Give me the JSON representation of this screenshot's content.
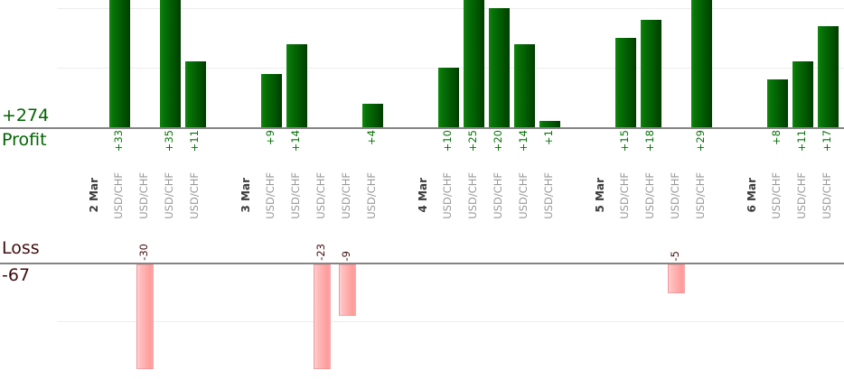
{
  "chart_data": {
    "type": "bar",
    "orientation": "vertical-split-panels",
    "grid": "on",
    "panels": [
      {
        "id": "profit",
        "axis_title": "Profit",
        "total_label": "+274",
        "gridline_values": [
          10,
          20
        ],
        "value_range_visible": [
          0,
          21
        ]
      },
      {
        "id": "loss",
        "axis_title": "Loss",
        "total_label": "-67",
        "gridline_values": [
          10
        ],
        "value_range_visible": [
          0,
          18
        ]
      }
    ],
    "groups": [
      {
        "date": "2 Mar",
        "trades": [
          {
            "symbol": "USD/CHF",
            "value": 33,
            "label": "+33"
          },
          {
            "symbol": "USD/CHF",
            "value": -30,
            "label": "-30"
          },
          {
            "symbol": "USD/CHF",
            "value": 35,
            "label": "+35"
          },
          {
            "symbol": "USD/CHF",
            "value": 11,
            "label": "+11"
          }
        ]
      },
      {
        "date": "3 Mar",
        "trades": [
          {
            "symbol": "USD/CHF",
            "value": 9,
            "label": "+9"
          },
          {
            "symbol": "USD/CHF",
            "value": 14,
            "label": "+14"
          },
          {
            "symbol": "USD/CHF",
            "value": -23,
            "label": "-23"
          },
          {
            "symbol": "USD/CHF",
            "value": -9,
            "label": "-9"
          },
          {
            "symbol": "USD/CHF",
            "value": 4,
            "label": "+4"
          }
        ]
      },
      {
        "date": "4 Mar",
        "trades": [
          {
            "symbol": "USD/CHF",
            "value": 10,
            "label": "+10"
          },
          {
            "symbol": "USD/CHF",
            "value": 25,
            "label": "+25"
          },
          {
            "symbol": "USD/CHF",
            "value": 20,
            "label": "+20"
          },
          {
            "symbol": "USD/CHF",
            "value": 14,
            "label": "+14"
          },
          {
            "symbol": "USD/CHF",
            "value": 1,
            "label": "+1"
          }
        ]
      },
      {
        "date": "5 Mar",
        "trades": [
          {
            "symbol": "USD/CHF",
            "value": 15,
            "label": "+15"
          },
          {
            "symbol": "USD/CHF",
            "value": 18,
            "label": "+18"
          },
          {
            "symbol": "USD/CHF",
            "value": -5,
            "label": "-5"
          },
          {
            "symbol": "USD/CHF",
            "value": 29,
            "label": "+29"
          }
        ]
      },
      {
        "date": "6 Mar",
        "trades": [
          {
            "symbol": "USD/CHF",
            "value": 8,
            "label": "+8"
          },
          {
            "symbol": "USD/CHF",
            "value": 11,
            "label": "+11"
          },
          {
            "symbol": "USD/CHF",
            "value": 17,
            "label": "+17"
          }
        ]
      }
    ],
    "colors": {
      "profit_bar_light": "#11870f",
      "profit_bar_dark": "#003c00",
      "loss_bar_light": "#ffd2d2",
      "loss_bar_dark": "#ff9b9b",
      "profit_text": "#006400",
      "profit_value_text": "#067206",
      "loss_text": "#400d0d",
      "date_text": "#3d3d3d",
      "symbol_text": "#989898",
      "baseline": "#848484",
      "gridline": "#ededed"
    }
  }
}
